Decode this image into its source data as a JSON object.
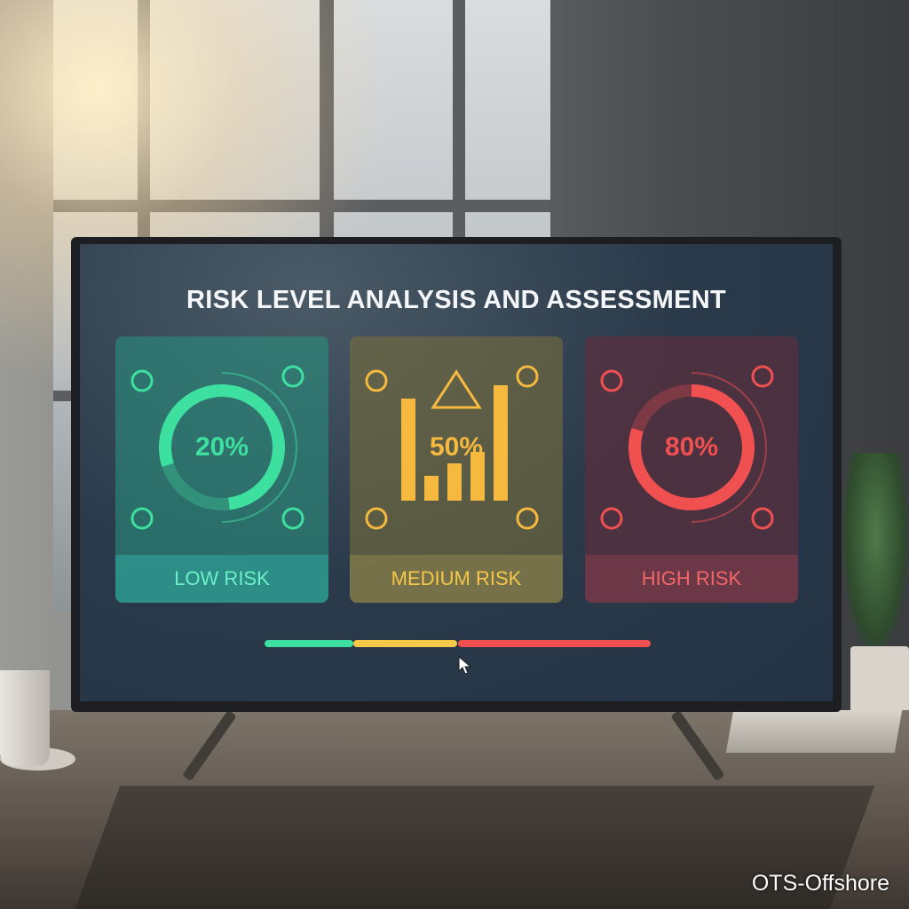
{
  "dashboard": {
    "title": "RISK LEVEL ANALYSIS AND ASSESSMENT",
    "cards": [
      {
        "label": "LOW RISK",
        "value": "20%",
        "level": 20,
        "color": "#3ee0a0",
        "icons": [
          "trees-icon",
          "shield-icon",
          "road-icon",
          "house-icon"
        ]
      },
      {
        "label": "MEDIUM RISK",
        "value": "50%",
        "level": 50,
        "color": "#f5b940",
        "icons": [
          "winding-road-icon",
          "warning-triangle-icon",
          "storm-cloud-icon",
          "curvy-road-icon",
          "factory-icon"
        ]
      },
      {
        "label": "HIGH RISK",
        "value": "80%",
        "level": 80,
        "color": "#f05050",
        "icons": [
          "volcano-icon",
          "skull-crossbones-icon",
          "flood-icon",
          "broken-pole-icon"
        ]
      }
    ],
    "risk_bar": {
      "segments": [
        {
          "color": "#3ee0a0",
          "fraction": 0.23
        },
        {
          "color": "#f5c84a",
          "fraction": 0.27
        },
        {
          "color": "#f05050",
          "fraction": 0.5
        }
      ]
    }
  },
  "watermark": "OTS-Offshore"
}
